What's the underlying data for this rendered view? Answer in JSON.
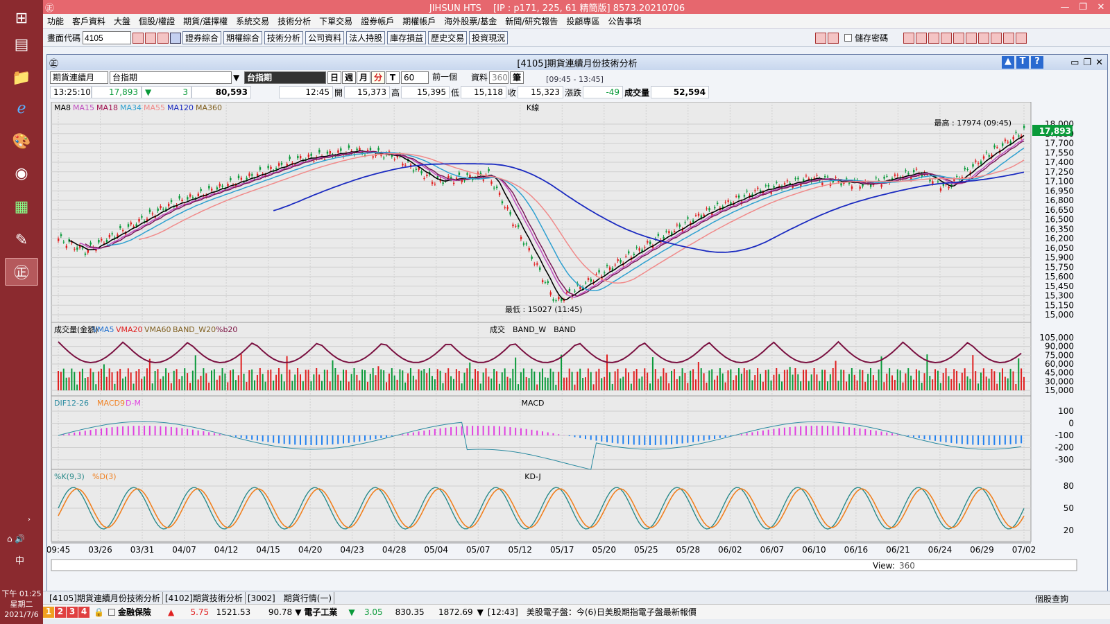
{
  "taskbar": {
    "clock_time": "下午 01:25",
    "clock_day": "星期二",
    "clock_date": "2021/7/6",
    "ime": "中"
  },
  "window": {
    "title": "JIHSUN HTS　 [IP : p171, 225, 61 精簡版] 8573.20210706"
  },
  "menu": [
    "功能",
    "客戶資料",
    "大盤",
    "個股/權證",
    "期貨/選擇權",
    "系統交易",
    "技術分析",
    "下單交易",
    "證券帳戶",
    "期權帳戶",
    "海外股票/基金",
    "新聞/研究報告",
    "投顧專區",
    "公告事項"
  ],
  "toolbar": {
    "code_label": "畫面代碼",
    "code_value": "4105",
    "buttons": [
      "證券綜合",
      "期權綜合",
      "技術分析",
      "公司資料",
      "法人持股",
      "庫存損益",
      "歷史交易",
      "投資現況"
    ],
    "save_pwd": "儲存密碼"
  },
  "panel": {
    "title": "[4105]期貨連續月份技術分析",
    "series_select": "期貨連續月",
    "symbol": "台指期",
    "symbol_name": "台指期",
    "periods": [
      "日",
      "週",
      "月",
      "分",
      "T"
    ],
    "interval": "60",
    "prev": "前一個",
    "data_label": "資料",
    "data_count": "360",
    "unit": "筆",
    "time_range": "[09:45 - 13:45]"
  },
  "quote": {
    "time": "13:25:10",
    "price": "17,893",
    "arrow": "▼",
    "chg": "3",
    "volume_total": "80,593",
    "bar_time": "12:45",
    "open_l": "開",
    "open": "15,373",
    "high_l": "高",
    "high": "15,395",
    "low_l": "低",
    "low": "15,118",
    "close_l": "收",
    "close": "15,323",
    "chg_l": "漲跌",
    "change": "-49",
    "vol_l": "成交量",
    "vol": "52,594"
  },
  "kline": {
    "legend": [
      "MA8",
      "MA15",
      "MA18",
      "MA34",
      "MA55",
      "MA120",
      "MA360"
    ],
    "title": "K線",
    "high_note": "最高 : 17974 (09:45)",
    "low_note": "最低 : 15027 (11:45)",
    "last_price": "17,893",
    "yticks": [
      "18,000",
      "17,850",
      "17,700",
      "17,550",
      "17,400",
      "17,250",
      "17,100",
      "16,950",
      "16,800",
      "16,650",
      "16,500",
      "16,350",
      "16,200",
      "16,050",
      "15,900",
      "15,750",
      "15,600",
      "15,450",
      "15,300",
      "15,150",
      "15,000"
    ]
  },
  "volume": {
    "legend": [
      "成交量(金額)",
      "VMA5",
      "VMA20",
      "VMA60",
      "BAND_W20",
      "%b20"
    ],
    "title": "成交　BAND_W　BAND",
    "yticks": [
      "105,000",
      "90,000",
      "75,000",
      "60,000",
      "45,000",
      "30,000",
      "15,000"
    ]
  },
  "macd": {
    "legend": [
      "DIF12-26",
      "MACD9",
      "D-M"
    ],
    "title": "MACD",
    "yticks": [
      "100",
      "0",
      "-100",
      "-200",
      "-300"
    ]
  },
  "kd": {
    "legend": [
      "%K(9,3)",
      "%D(3)"
    ],
    "title": "KD-J",
    "yticks": [
      "80",
      "50",
      "20"
    ]
  },
  "xaxis": [
    "09:45",
    "03/26",
    "03/31",
    "04/07",
    "04/12",
    "04/15",
    "04/20",
    "04/23",
    "04/28",
    "05/04",
    "05/07",
    "05/12",
    "05/17",
    "05/20",
    "05/25",
    "05/28",
    "06/02",
    "06/07",
    "06/10",
    "06/16",
    "06/21",
    "06/24",
    "06/29",
    "07/02"
  ],
  "view": {
    "label": "View:",
    "value": "360"
  },
  "tabs": [
    "[4105]期貨連續月份技術分析",
    "[4102]期貨技術分析",
    "[3002]　期貨行情(一)"
  ],
  "right_status": "個股查詢",
  "ticker": {
    "num": [
      "1",
      "2",
      "3",
      "4"
    ],
    "stock": "金融保險",
    "stock_chg": "5.75",
    "stock_val": "1521.53",
    "stock_amt": "90.78",
    "stock2": "電子工業",
    "stock2_chg": "3.05",
    "stock2_val": "830.35",
    "stock2_amt": "1872.69",
    "news": "[12:43]　美股電子盤：今(6)日美股期指電子盤最新報價"
  },
  "colors": {
    "up": "#e02020",
    "down": "#0a9a3a",
    "ma8": "#000000",
    "ma15": "#c050c0",
    "ma18": "#7a1a5a",
    "ma34": "#2ea0d0",
    "ma55": "#f08a8a",
    "ma120": "#1a2ac0",
    "volline": "#7a1040"
  }
}
